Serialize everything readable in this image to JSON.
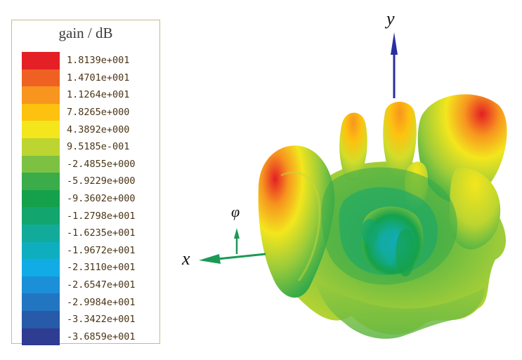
{
  "legend": {
    "title": "gain / dB",
    "items": [
      {
        "label": "1.8139e+001",
        "color": "#e41f25"
      },
      {
        "label": "1.4701e+001",
        "color": "#ef6122"
      },
      {
        "label": "1.1264e+001",
        "color": "#f7951f"
      },
      {
        "label": "7.8265e+000",
        "color": "#fdc20f"
      },
      {
        "label": "4.3892e+000",
        "color": "#f3e61d"
      },
      {
        "label": "9.5185e-001",
        "color": "#bdd530"
      },
      {
        "label": "-2.4855e+000",
        "color": "#7dc143"
      },
      {
        "label": "-5.9229e+000",
        "color": "#3aac49"
      },
      {
        "label": "-9.3602e+000",
        "color": "#15a14b"
      },
      {
        "label": "-1.2798e+001",
        "color": "#12a56e"
      },
      {
        "label": "-1.6235e+001",
        "color": "#12ab9a"
      },
      {
        "label": "-1.9672e+001",
        "color": "#0faebf"
      },
      {
        "label": "-2.3110e+001",
        "color": "#11abe6"
      },
      {
        "label": "-2.6547e+001",
        "color": "#1b8fd8"
      },
      {
        "label": "-2.9984e+001",
        "color": "#2276c1"
      },
      {
        "label": "-3.3422e+001",
        "color": "#275aa8"
      },
      {
        "label": "-3.6859e+001",
        "color": "#2e3c91"
      }
    ]
  },
  "axes": {
    "y_label": "y",
    "x_label": "x",
    "phi_label": "φ",
    "y_color": "#2a2fa0",
    "x_color": "#1a9a55",
    "phi_color": "#1a9a55"
  }
}
